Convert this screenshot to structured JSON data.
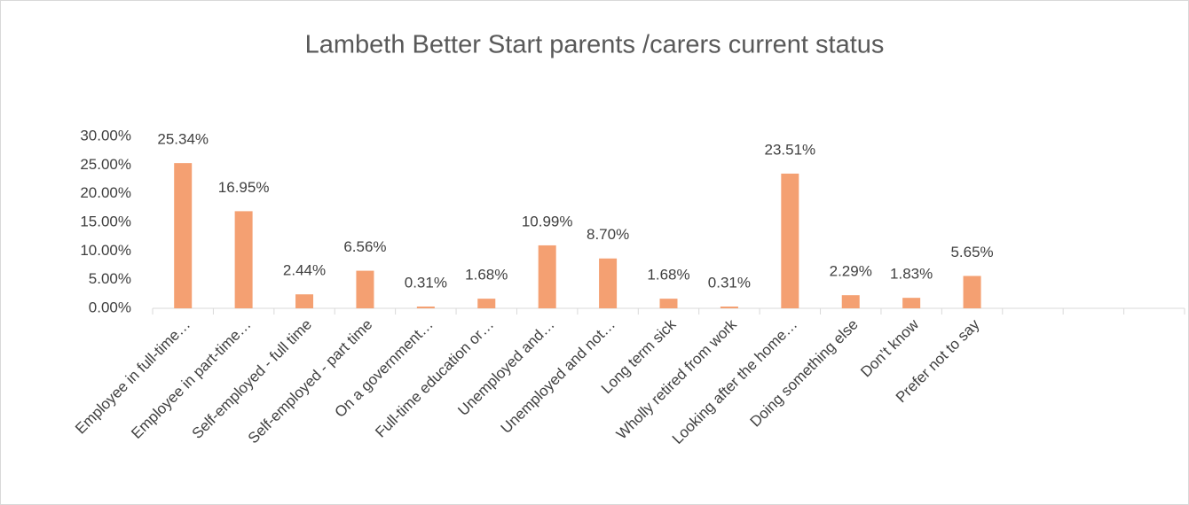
{
  "chart_data": {
    "type": "bar",
    "title": "Lambeth Better Start parents /carers current status",
    "categories": [
      "Employee in full-time…",
      "Employee in part-time…",
      "Self-employed - full time",
      "Self-employed - part time",
      "On a government…",
      "Full-time education or…",
      "Unemployed and…",
      "Unemployed and not…",
      "Long term sick",
      "Wholly retired from work",
      "Looking after the home…",
      "Doing something else",
      "Don’t know",
      "Prefer not to say",
      null,
      null,
      null
    ],
    "values": [
      25.34,
      16.95,
      2.44,
      6.56,
      0.31,
      1.68,
      10.99,
      8.7,
      1.68,
      0.31,
      23.51,
      2.29,
      1.83,
      5.65,
      null,
      null,
      null
    ],
    "value_labels": [
      "25.34%",
      "16.95%",
      "2.44%",
      "6.56%",
      "0.31%",
      "1.68%",
      "10.99%",
      "8.70%",
      "1.68%",
      "0.31%",
      "23.51%",
      "2.29%",
      "1.83%",
      "5.65%",
      null,
      null,
      null
    ],
    "color": "#f4a072",
    "ylim": [
      0,
      30
    ],
    "yticks": [
      {
        "value": 0,
        "label": "0.00%"
      },
      {
        "value": 5,
        "label": "5.00%"
      },
      {
        "value": 10,
        "label": "10.00%"
      },
      {
        "value": 15,
        "label": "15.00%"
      },
      {
        "value": 20,
        "label": "20.00%"
      },
      {
        "value": 25,
        "label": "25.00%"
      },
      {
        "value": 30,
        "label": "30.00%"
      }
    ],
    "grid": false
  }
}
